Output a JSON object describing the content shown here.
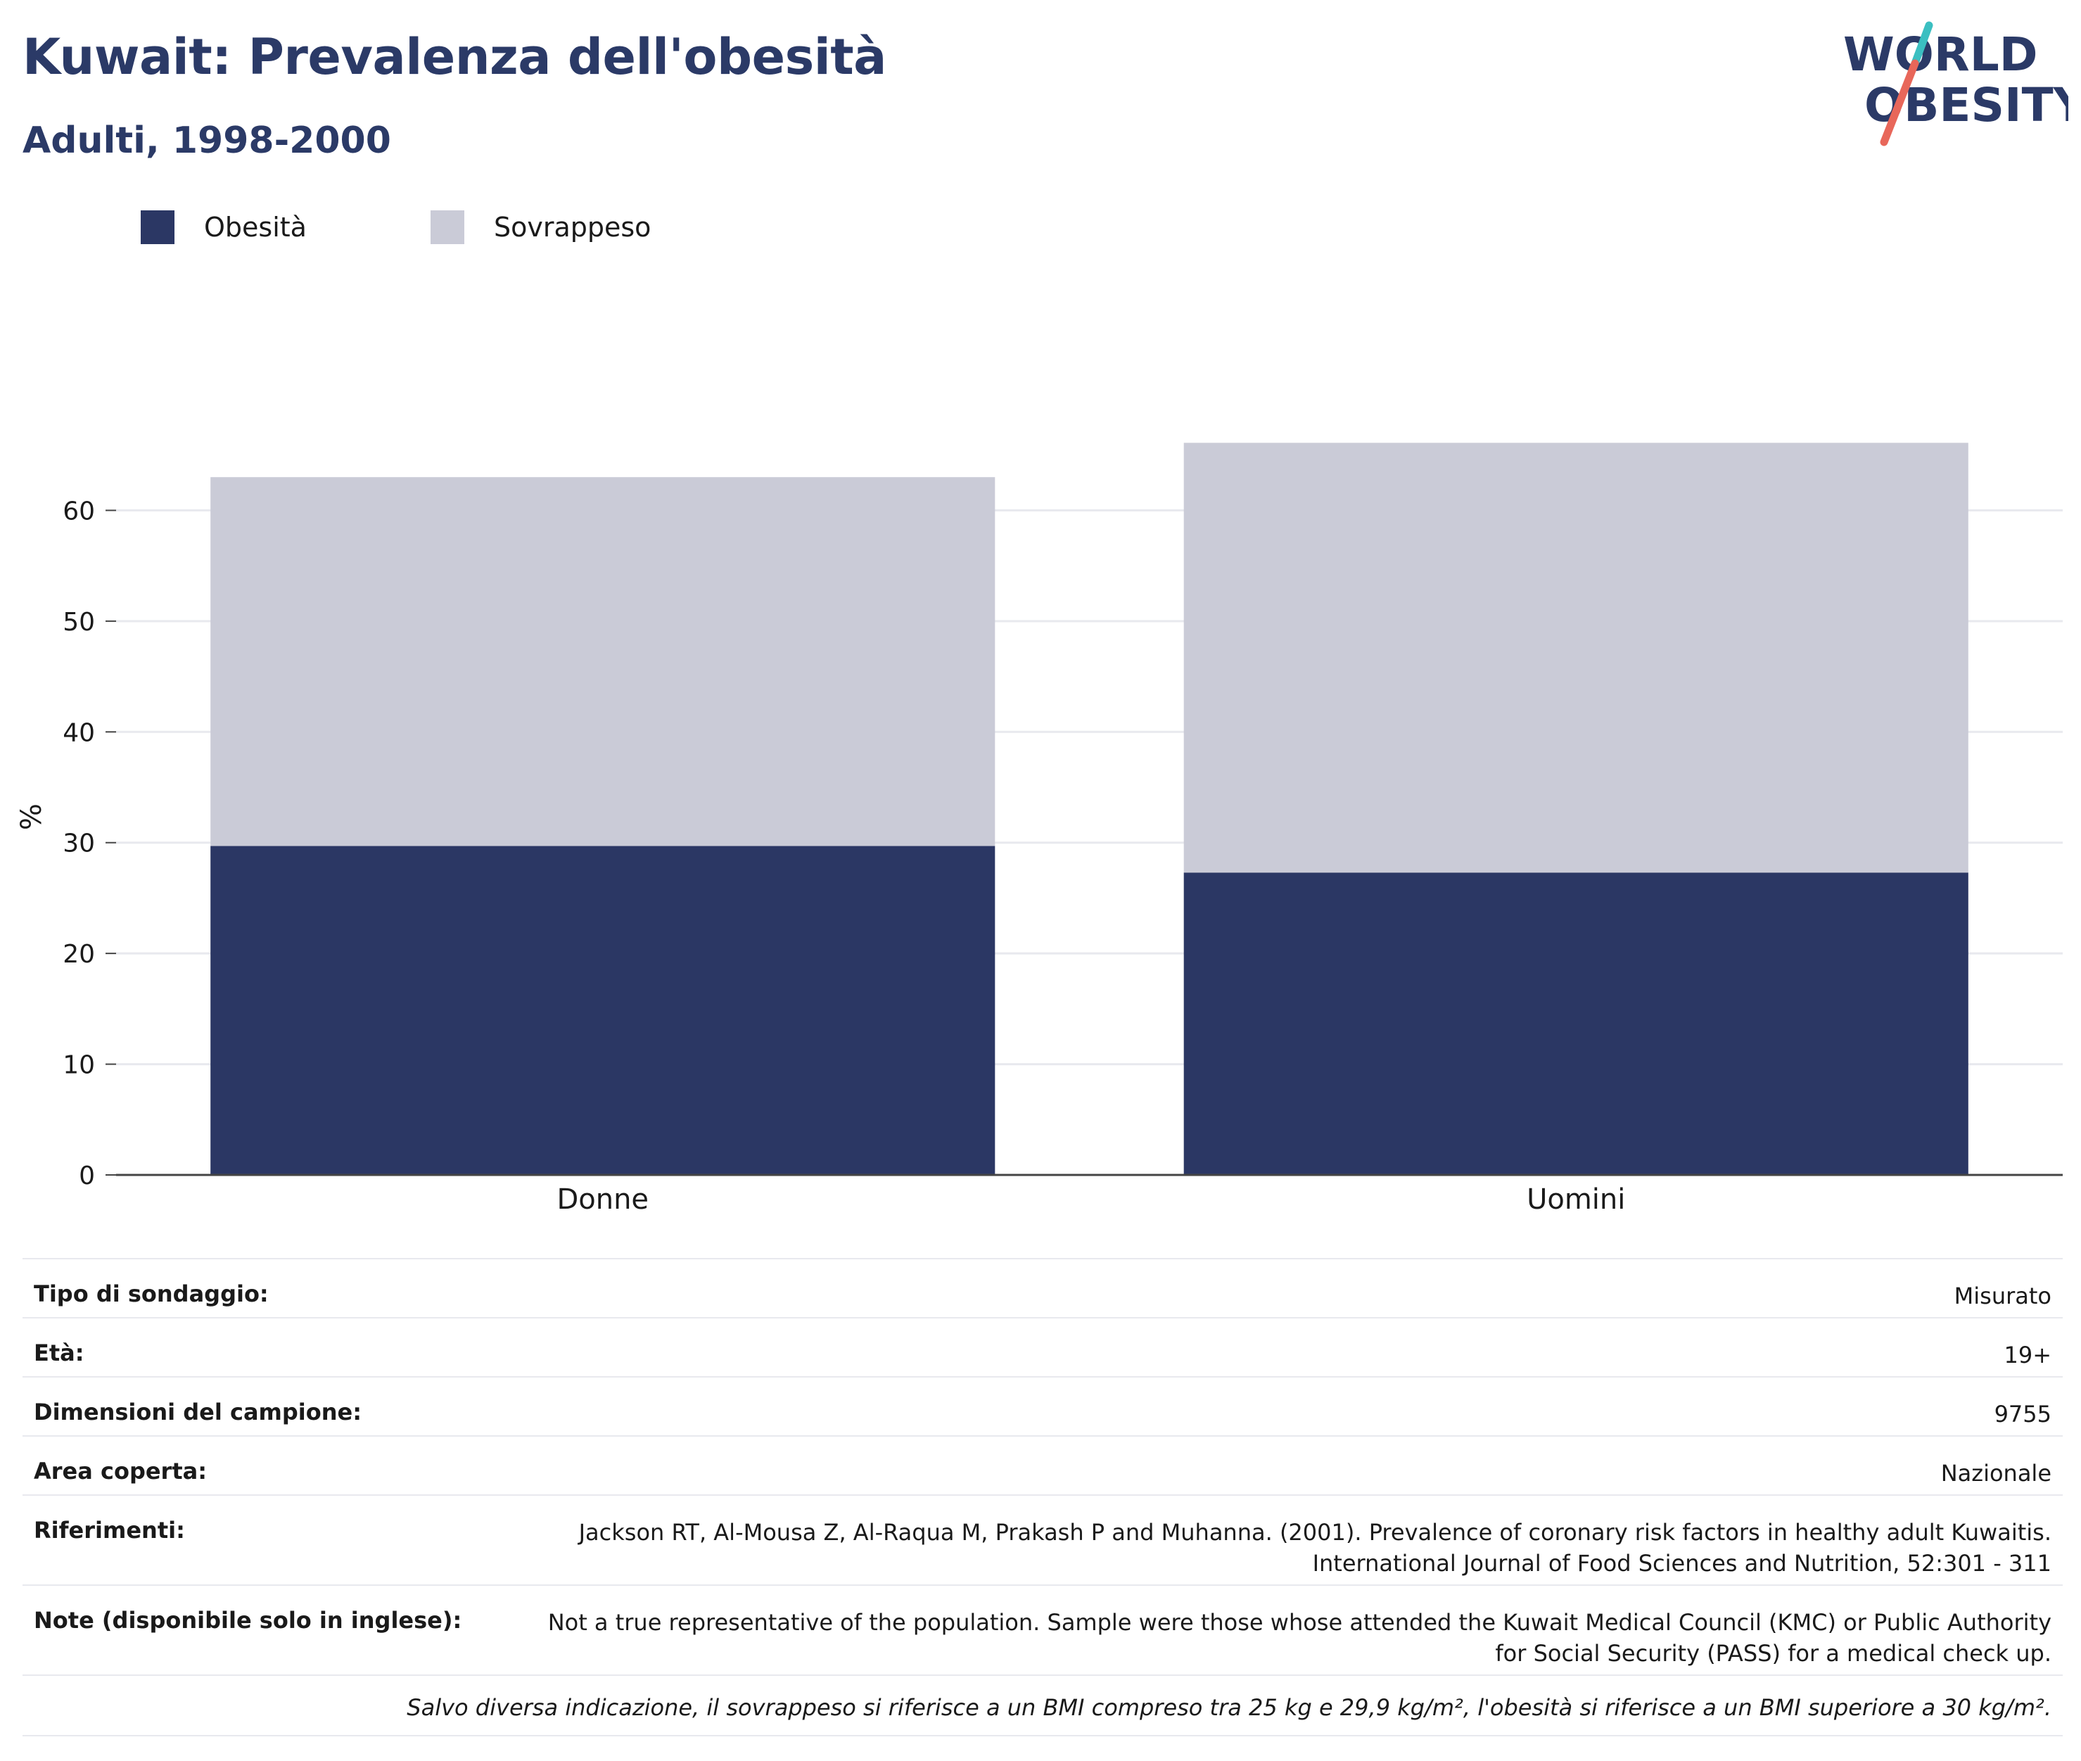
{
  "header": {
    "title": "Kuwait: Prevalenza dell'obesità",
    "subtitle": "Adulti, 1998-2000"
  },
  "logo": {
    "line1": "WORLD",
    "line2": "OBESITY",
    "colors": {
      "text": "#2b3a67",
      "slash_top": "#3bbfc1",
      "slash_bottom": "#e8675a"
    }
  },
  "chart_data": {
    "type": "bar",
    "stacked": true,
    "categories": [
      "Donne",
      "Uomini"
    ],
    "series": [
      {
        "name": "Obesità",
        "color": "#2b3764",
        "values": [
          29.7,
          27.3
        ]
      },
      {
        "name": "Sovrappeso",
        "color": "#cacbd7",
        "values": [
          33.3,
          38.8
        ]
      }
    ],
    "ylabel": "%",
    "yticks": [
      0,
      10,
      20,
      30,
      40,
      50,
      60
    ],
    "ylim": [
      0,
      70
    ],
    "grid": true,
    "legend_position": "top-left"
  },
  "info": {
    "rows": [
      {
        "label": "Tipo di sondaggio:",
        "value": "Misurato"
      },
      {
        "label": "Età:",
        "value": "19+"
      },
      {
        "label": "Dimensioni del campione:",
        "value": "9755"
      },
      {
        "label": "Area coperta:",
        "value": "Nazionale"
      },
      {
        "label": "Riferimenti:",
        "value_lines": [
          "Jackson RT, Al-Mousa Z, Al-Raqua M, Prakash P and Muhanna. (2001). Prevalence of coronary risk factors in healthy adult Kuwaitis.",
          "International Journal of Food Sciences and Nutrition, 52:301 - 311"
        ]
      },
      {
        "label": "Note (disponibile solo in inglese):",
        "value_lines": [
          "Not a true representative of the population. Sample were those whose attended the Kuwait Medical Council (KMC) or Public Authority",
          "for Social Security (PASS) for a medical check up."
        ]
      }
    ],
    "footnote": "Salvo diversa indicazione, il sovrappeso si riferisce a un BMI compreso tra 25 kg e 29,9 kg/m², l'obesità si riferisce a un BMI superiore a 30 kg/m²."
  }
}
